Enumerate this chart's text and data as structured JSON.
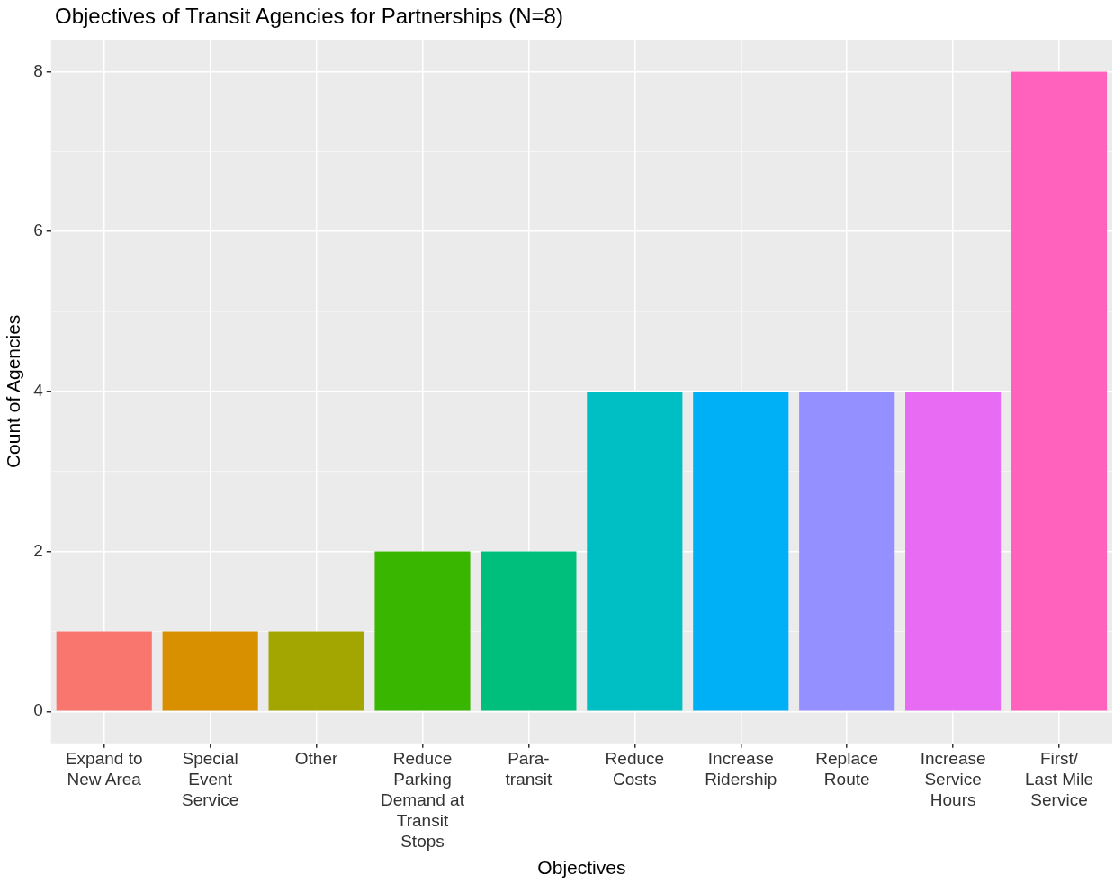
{
  "chart_data": {
    "type": "bar",
    "title": "Objectives of Transit Agencies for Partnerships (N=8)",
    "xlabel": "Objectives",
    "ylabel": "Count of Agencies",
    "categories": [
      "Expand to\nNew Area",
      "Special\nEvent\nService",
      "Other",
      "Reduce\nParking\nDemand at\nTransit\nStops",
      "Para-\ntransit",
      "Reduce\nCosts",
      "Increase\nRidership",
      "Replace\nRoute",
      "Increase\nService\nHours",
      "First/\nLast Mile\nService"
    ],
    "values": [
      1,
      1,
      1,
      2,
      2,
      4,
      4,
      4,
      4,
      8
    ],
    "colors": [
      "#f8766d",
      "#d89000",
      "#a3a500",
      "#39b600",
      "#00bf7d",
      "#00bfc4",
      "#00b0f6",
      "#9590ff",
      "#e76bf3",
      "#ff62bc"
    ],
    "ylim": [
      -0.4,
      8.4
    ],
    "yticks": [
      0,
      2,
      4,
      6,
      8
    ],
    "grid": true,
    "legend": false
  }
}
